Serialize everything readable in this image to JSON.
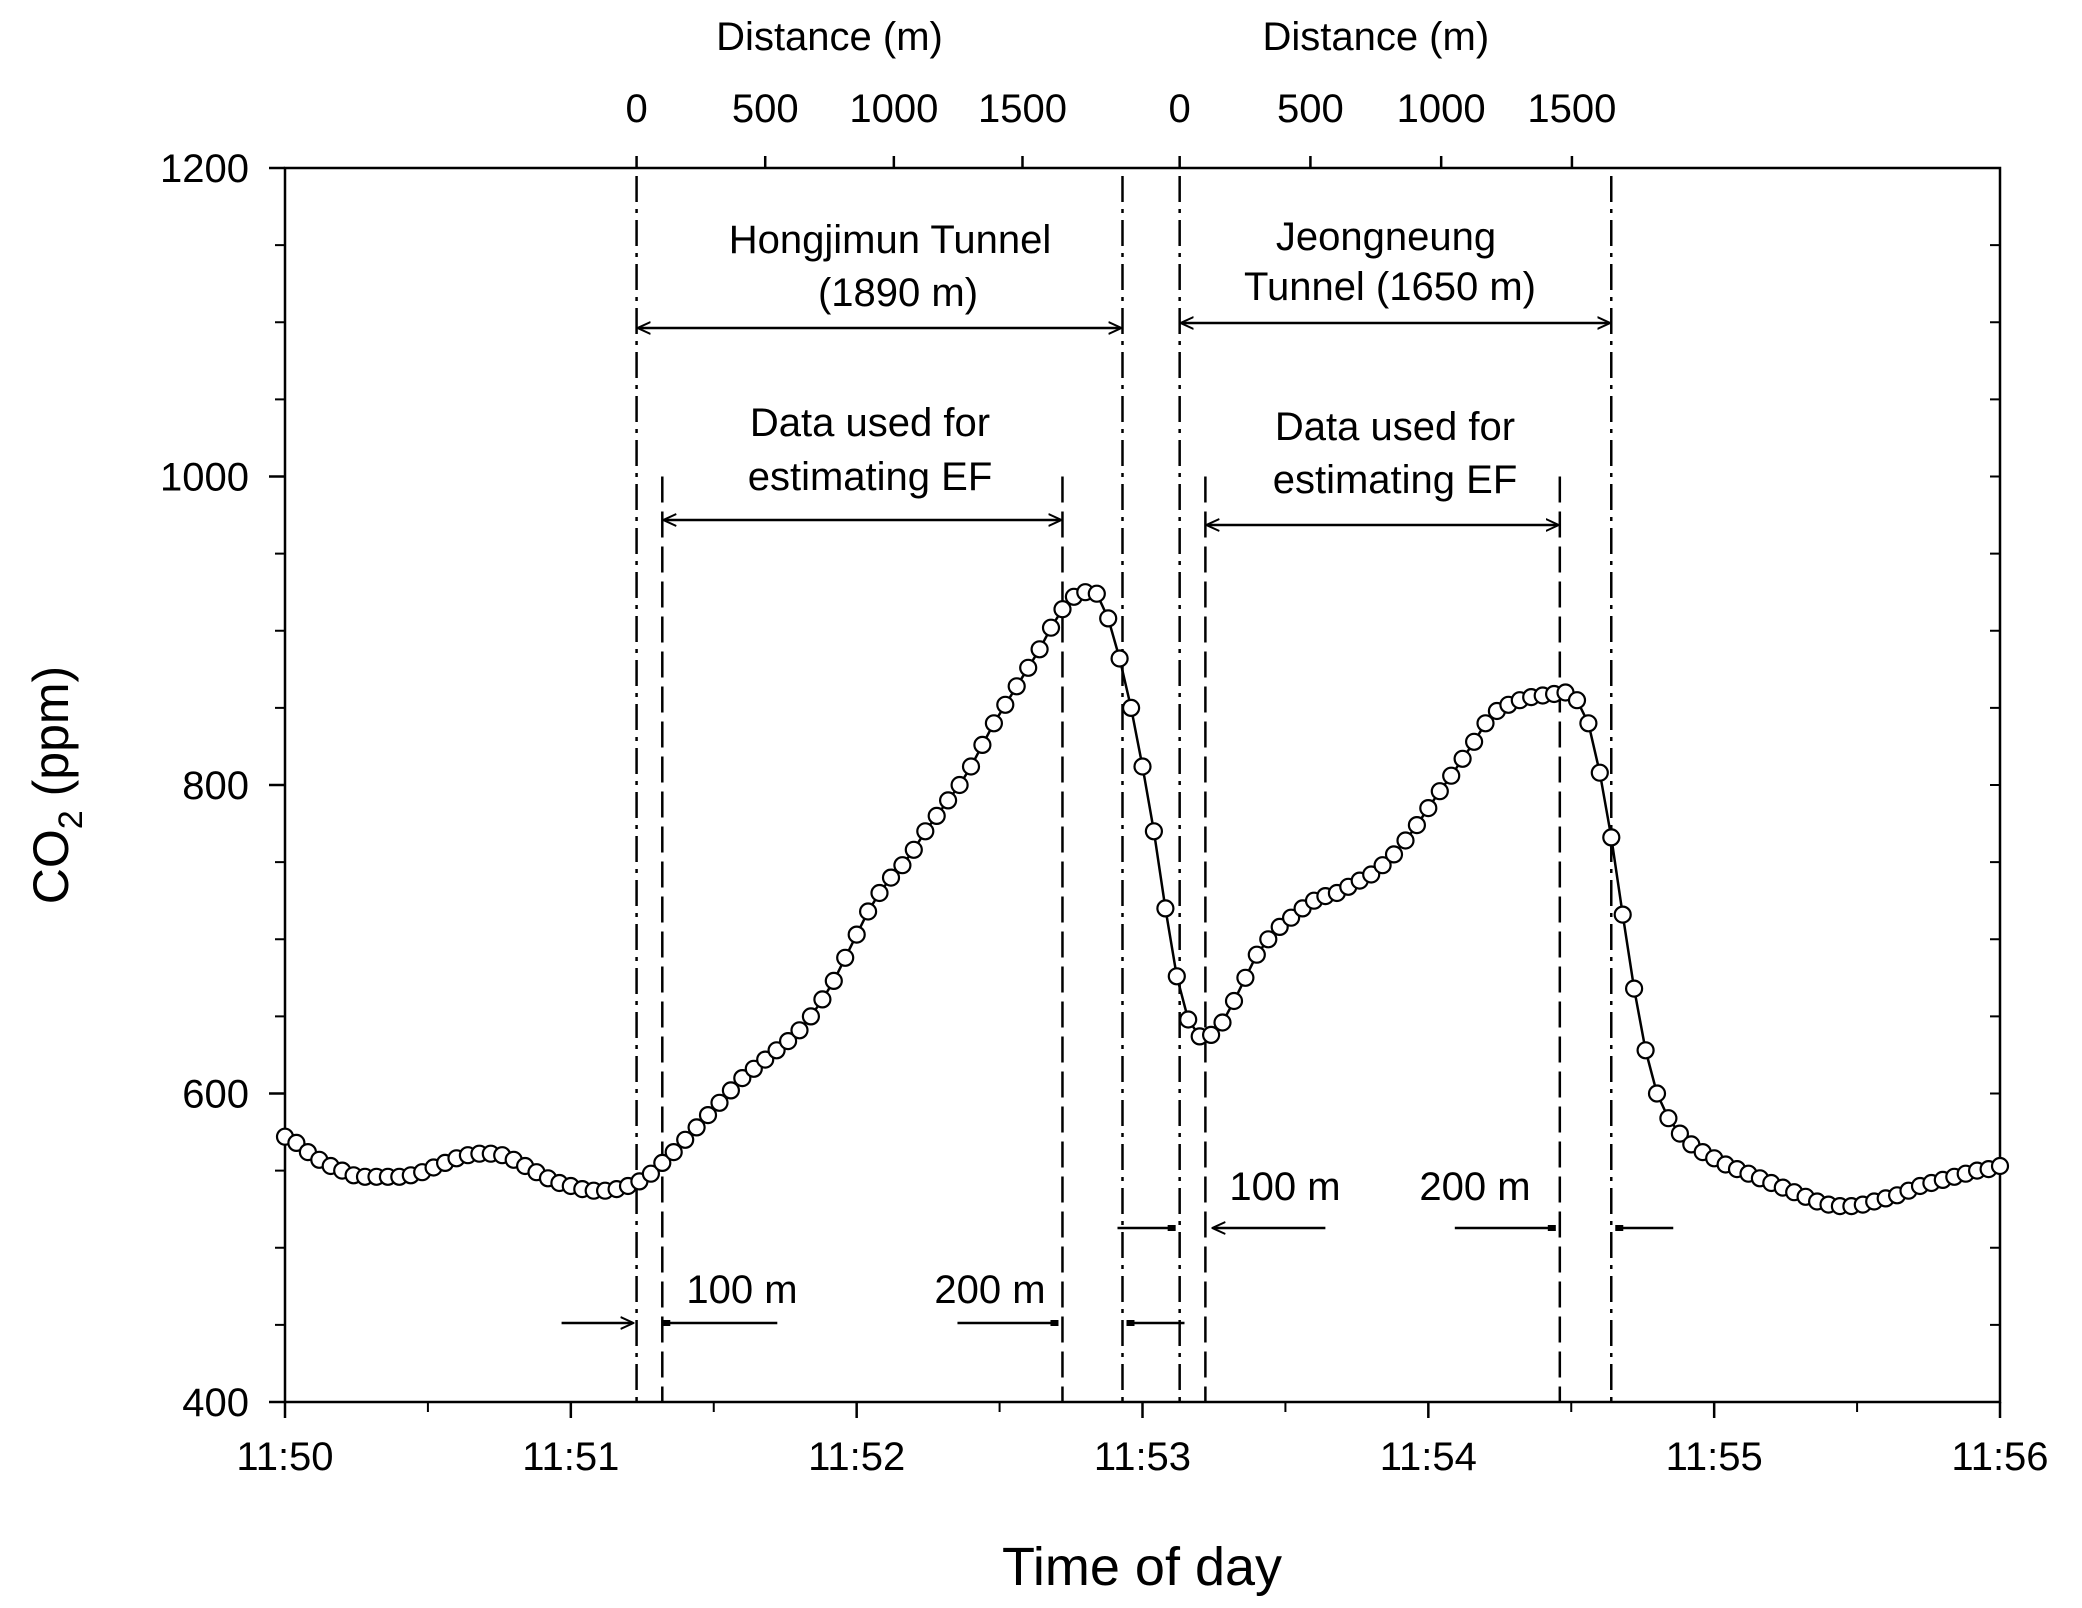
{
  "chart_data": {
    "type": "line",
    "title": "",
    "xlabel": "Time of day",
    "ylabel_main": "CO",
    "ylabel_sub": "2",
    "ylabel_unit": " (ppm)",
    "xlim_min": [
      0,
      6
    ],
    "ylim": [
      400,
      1200
    ],
    "x_ticks": [
      {
        "v": 0,
        "label": "11:50"
      },
      {
        "v": 1,
        "label": "11:51"
      },
      {
        "v": 2,
        "label": "11:52"
      },
      {
        "v": 3,
        "label": "11:53"
      },
      {
        "v": 4,
        "label": "11:54"
      },
      {
        "v": 5,
        "label": "11:55"
      },
      {
        "v": 6,
        "label": "11:56"
      }
    ],
    "y_ticks": [
      {
        "v": 400,
        "label": "400"
      },
      {
        "v": 600,
        "label": "600"
      },
      {
        "v": 800,
        "label": "800"
      },
      {
        "v": 1000,
        "label": "1000"
      },
      {
        "v": 1200,
        "label": "1200"
      }
    ],
    "top_axes": [
      {
        "label": "Distance (m)",
        "start_min": 1.23,
        "end_min": 2.93,
        "ticks": [
          {
            "d": 0,
            "label": "0"
          },
          {
            "d": 500,
            "label": "500"
          },
          {
            "d": 1000,
            "label": "1000"
          },
          {
            "d": 1500,
            "label": "1500"
          }
        ],
        "dist_per_min": 1111
      },
      {
        "label": "Distance (m)",
        "start_min": 3.13,
        "end_min": 4.64,
        "ticks": [
          {
            "d": 0,
            "label": "0"
          },
          {
            "d": 500,
            "label": "500"
          },
          {
            "d": 1000,
            "label": "1000"
          },
          {
            "d": 1500,
            "label": "1500"
          }
        ],
        "dist_per_min": 1093
      }
    ],
    "tunnels": [
      {
        "name": "Hongjimun Tunnel",
        "length": "(1890 m)",
        "entry_min": 1.23,
        "exit_min": 2.93,
        "ef_start_min": 1.32,
        "ef_end_min": 2.72,
        "ef_label_1": "Data used for",
        "ef_label_2": "estimating EF"
      },
      {
        "name": "Jeongneung",
        "length": "Tunnel (1650 m)",
        "entry_min": 3.13,
        "exit_min": 4.64,
        "ef_start_min": 3.22,
        "ef_end_min": 4.46,
        "ef_label_1": "Data used for",
        "ef_label_2": "estimating EF"
      }
    ],
    "buffer_labels": {
      "l1": "100 m",
      "l2": "200 m",
      "l3": "100 m",
      "l4": "200 m"
    },
    "series": [
      {
        "name": "CO2",
        "marker": "open-circle",
        "points": [
          [
            0.0,
            572
          ],
          [
            0.04,
            568
          ],
          [
            0.08,
            562
          ],
          [
            0.12,
            557
          ],
          [
            0.16,
            553
          ],
          [
            0.2,
            550
          ],
          [
            0.24,
            547
          ],
          [
            0.28,
            546
          ],
          [
            0.32,
            546
          ],
          [
            0.36,
            546
          ],
          [
            0.4,
            546
          ],
          [
            0.44,
            547
          ],
          [
            0.48,
            549
          ],
          [
            0.52,
            552
          ],
          [
            0.56,
            555
          ],
          [
            0.6,
            558
          ],
          [
            0.64,
            560
          ],
          [
            0.68,
            561
          ],
          [
            0.72,
            561
          ],
          [
            0.76,
            560
          ],
          [
            0.8,
            557
          ],
          [
            0.84,
            553
          ],
          [
            0.88,
            549
          ],
          [
            0.92,
            545
          ],
          [
            0.96,
            542
          ],
          [
            1.0,
            540
          ],
          [
            1.04,
            538
          ],
          [
            1.08,
            537
          ],
          [
            1.12,
            537
          ],
          [
            1.16,
            538
          ],
          [
            1.2,
            540
          ],
          [
            1.24,
            543
          ],
          [
            1.28,
            548
          ],
          [
            1.32,
            555
          ],
          [
            1.36,
            562
          ],
          [
            1.4,
            570
          ],
          [
            1.44,
            578
          ],
          [
            1.48,
            586
          ],
          [
            1.52,
            594
          ],
          [
            1.56,
            602
          ],
          [
            1.6,
            610
          ],
          [
            1.64,
            616
          ],
          [
            1.68,
            622
          ],
          [
            1.72,
            628
          ],
          [
            1.76,
            634
          ],
          [
            1.8,
            641
          ],
          [
            1.84,
            650
          ],
          [
            1.88,
            661
          ],
          [
            1.92,
            673
          ],
          [
            1.96,
            688
          ],
          [
            2.0,
            703
          ],
          [
            2.04,
            718
          ],
          [
            2.08,
            730
          ],
          [
            2.12,
            740
          ],
          [
            2.16,
            748
          ],
          [
            2.2,
            758
          ],
          [
            2.24,
            770
          ],
          [
            2.28,
            780
          ],
          [
            2.32,
            790
          ],
          [
            2.36,
            800
          ],
          [
            2.4,
            812
          ],
          [
            2.44,
            826
          ],
          [
            2.48,
            840
          ],
          [
            2.52,
            852
          ],
          [
            2.56,
            864
          ],
          [
            2.6,
            876
          ],
          [
            2.64,
            888
          ],
          [
            2.68,
            902
          ],
          [
            2.72,
            914
          ],
          [
            2.76,
            922
          ],
          [
            2.8,
            925
          ],
          [
            2.84,
            924
          ],
          [
            2.88,
            908
          ],
          [
            2.92,
            882
          ],
          [
            2.96,
            850
          ],
          [
            3.0,
            812
          ],
          [
            3.04,
            770
          ],
          [
            3.08,
            720
          ],
          [
            3.12,
            676
          ],
          [
            3.16,
            648
          ],
          [
            3.2,
            637
          ],
          [
            3.24,
            638
          ],
          [
            3.28,
            646
          ],
          [
            3.32,
            660
          ],
          [
            3.36,
            675
          ],
          [
            3.4,
            690
          ],
          [
            3.44,
            700
          ],
          [
            3.48,
            708
          ],
          [
            3.52,
            714
          ],
          [
            3.56,
            720
          ],
          [
            3.6,
            725
          ],
          [
            3.64,
            728
          ],
          [
            3.68,
            730
          ],
          [
            3.72,
            734
          ],
          [
            3.76,
            738
          ],
          [
            3.8,
            742
          ],
          [
            3.84,
            748
          ],
          [
            3.88,
            755
          ],
          [
            3.92,
            764
          ],
          [
            3.96,
            774
          ],
          [
            4.0,
            785
          ],
          [
            4.04,
            796
          ],
          [
            4.08,
            806
          ],
          [
            4.12,
            817
          ],
          [
            4.16,
            828
          ],
          [
            4.2,
            840
          ],
          [
            4.24,
            848
          ],
          [
            4.28,
            852
          ],
          [
            4.32,
            855
          ],
          [
            4.36,
            857
          ],
          [
            4.4,
            858
          ],
          [
            4.44,
            859
          ],
          [
            4.48,
            860
          ],
          [
            4.52,
            855
          ],
          [
            4.56,
            840
          ],
          [
            4.6,
            808
          ],
          [
            4.64,
            766
          ],
          [
            4.68,
            716
          ],
          [
            4.72,
            668
          ],
          [
            4.76,
            628
          ],
          [
            4.8,
            600
          ],
          [
            4.84,
            584
          ],
          [
            4.88,
            574
          ],
          [
            4.92,
            567
          ],
          [
            4.96,
            562
          ],
          [
            5.0,
            558
          ],
          [
            5.04,
            554
          ],
          [
            5.08,
            551
          ],
          [
            5.12,
            548
          ],
          [
            5.16,
            545
          ],
          [
            5.2,
            542
          ],
          [
            5.24,
            539
          ],
          [
            5.28,
            536
          ],
          [
            5.32,
            533
          ],
          [
            5.36,
            530
          ],
          [
            5.4,
            528
          ],
          [
            5.44,
            527
          ],
          [
            5.48,
            527
          ],
          [
            5.52,
            528
          ],
          [
            5.56,
            530
          ],
          [
            5.6,
            532
          ],
          [
            5.64,
            534
          ],
          [
            5.68,
            537
          ],
          [
            5.72,
            540
          ],
          [
            5.76,
            542
          ],
          [
            5.8,
            544
          ],
          [
            5.84,
            546
          ],
          [
            5.88,
            548
          ],
          [
            5.92,
            550
          ],
          [
            5.96,
            551
          ],
          [
            6.0,
            553
          ]
        ]
      }
    ]
  }
}
